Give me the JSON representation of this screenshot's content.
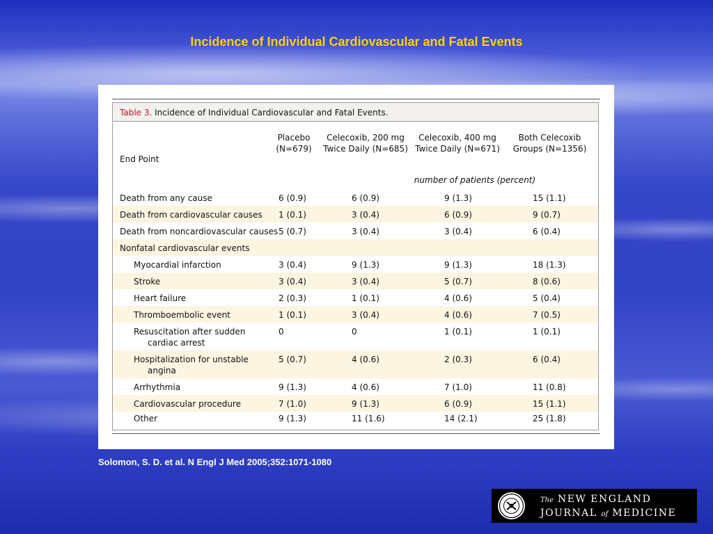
{
  "slide": {
    "title": "Incidence of Individual Cardiovascular and Fatal Events",
    "citation": "Solomon, S. D. et al. N Engl J Med 2005;352:1071-1080"
  },
  "table": {
    "caption_number": "Table 3.",
    "caption_text": "Incidence of Individual Cardiovascular and Fatal Events.",
    "headers": {
      "end_point": "End Point",
      "col0_line1": "Placebo",
      "col0_line2": "(N=679)",
      "col1_line1": "Celecoxib, 200 mg",
      "col1_line2": "Twice Daily (N=685)",
      "col2_line1": "Celecoxib, 400 mg",
      "col2_line2": "Twice Daily (N=671)",
      "col3_line1": "Both Celecoxib",
      "col3_line2": "Groups (N=1356)"
    },
    "subheader": "number of patients (percent)",
    "rows": [
      {
        "label": "Death from any cause",
        "label2": "",
        "v": [
          "6 (0.9)",
          "6 (0.9)",
          "9 (1.3)",
          "15 (1.1)"
        ]
      },
      {
        "label": "Death from cardiovascular causes",
        "label2": "",
        "v": [
          "1 (0.1)",
          "3 (0.4)",
          "6 (0.9)",
          "9 (0.7)"
        ]
      },
      {
        "label": "Death from noncardiovascular causes",
        "label2": "",
        "v": [
          "5 (0.7)",
          "3 (0.4)",
          "3 (0.4)",
          "6 (0.4)"
        ]
      },
      {
        "label": "Nonfatal cardiovascular events",
        "label2": "",
        "v": [
          "",
          "",
          "",
          ""
        ]
      },
      {
        "label": "Myocardial infarction",
        "label2": "",
        "v": [
          "3 (0.4)",
          "9 (1.3)",
          "9 (1.3)",
          "18 (1.3)"
        ]
      },
      {
        "label": "Stroke",
        "label2": "",
        "v": [
          "3 (0.4)",
          "3 (0.4)",
          "5 (0.7)",
          "8 (0.6)"
        ]
      },
      {
        "label": "Heart failure",
        "label2": "",
        "v": [
          "2 (0.3)",
          "1 (0.1)",
          "4 (0.6)",
          "5 (0.4)"
        ]
      },
      {
        "label": "Thromboembolic event",
        "label2": "",
        "v": [
          "1 (0.1)",
          "3 (0.4)",
          "4 (0.6)",
          "7 (0.5)"
        ]
      },
      {
        "label": "Resuscitation after sudden",
        "label2": "cardiac arrest",
        "v": [
          "0",
          "0",
          "1 (0.1)",
          "1 (0.1)"
        ]
      },
      {
        "label": "Hospitalization for unstable",
        "label2": "angina",
        "v": [
          "5 (0.7)",
          "4 (0.6)",
          "2 (0.3)",
          "6 (0.4)"
        ]
      },
      {
        "label": "Arrhythmia",
        "label2": "",
        "v": [
          "9 (1.3)",
          "4 (0.6)",
          "7 (1.0)",
          "11 (0.8)"
        ]
      },
      {
        "label": "Cardiovascular procedure",
        "label2": "",
        "v": [
          "7 (1.0)",
          "9 (1.3)",
          "6 (0.9)",
          "15 (1.1)"
        ]
      },
      {
        "label": "Other",
        "label2": "",
        "v": [
          "9 (1.3)",
          "11 (1.6)",
          "14 (2.1)",
          "25 (1.8)"
        ]
      }
    ]
  },
  "logo": {
    "the": "The",
    "line1": "NEW ENGLAND",
    "journal": "JOURNAL",
    "of": "of",
    "medicine": "MEDICINE"
  }
}
